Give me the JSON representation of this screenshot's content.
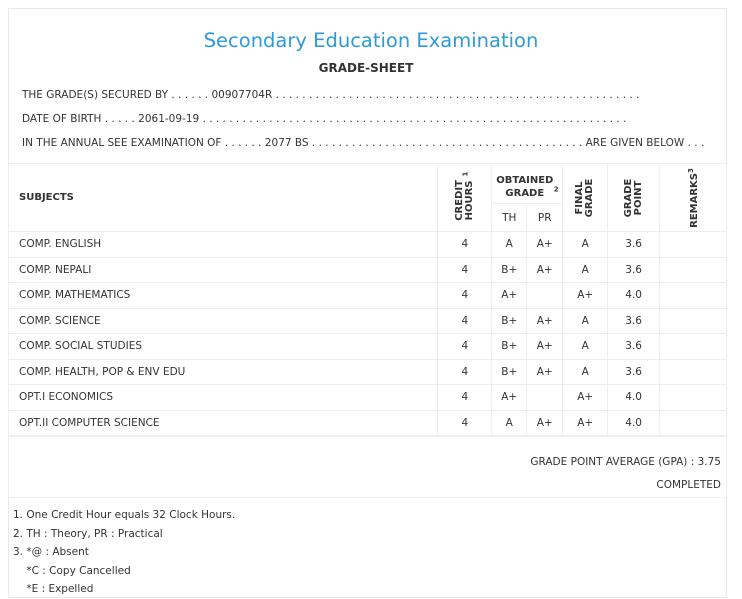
{
  "header": {
    "title": "Secondary Education Examination",
    "subtitle": "GRADE-SHEET"
  },
  "info": {
    "line1_prefix": "THE GRADE(S) SECURED BY . . . . . . ",
    "symbol_no": "00907704R",
    "line1_suffix": " . . . . . . . . . . . . . . . . . . . . . . . . . . . . . . . . . . . . . . . . . . . . . . . . . . . . . . .",
    "line2_prefix": "DATE OF BIRTH . . . . . ",
    "dob": "2061-09-19",
    "line2_suffix": " . . . . . . . . . . . . . . . . . . . . . . . . . . . . . . . . . . . . . . . . . . . . . . . . . . . . . . . . . . . . . . . .",
    "line3_prefix": "IN THE ANNUAL SEE EXAMINATION OF . . . . . . ",
    "exam_year": "2077 BS",
    "line3_suffix": " . . . . . . . . . . . . . . . . . . . . . . . . . . . . . . . . . . . . . . . . . ARE GIVEN BELOW . . ."
  },
  "table": {
    "headers": {
      "subjects": "SUBJECTS",
      "credit_hours": "CREDIT HOURS",
      "credit_sup": "1",
      "obtained_grade": "OBTAINED GRADE",
      "obtained_sup": "2",
      "th": "TH",
      "pr": "PR",
      "final_grade": "FINAL GRADE",
      "grade_point": "GRADE POINT",
      "remarks": "REMARKS",
      "remarks_sup": "3"
    },
    "rows": [
      {
        "subject": "COMP. ENGLISH",
        "credit": "4",
        "th": "A",
        "pr": "A+",
        "final": "A",
        "gp": "3.6",
        "remarks": ""
      },
      {
        "subject": "COMP. NEPALI",
        "credit": "4",
        "th": "B+",
        "pr": "A+",
        "final": "A",
        "gp": "3.6",
        "remarks": ""
      },
      {
        "subject": "COMP. MATHEMATICS",
        "credit": "4",
        "th": "A+",
        "pr": "",
        "final": "A+",
        "gp": "4.0",
        "remarks": ""
      },
      {
        "subject": "COMP. SCIENCE",
        "credit": "4",
        "th": "B+",
        "pr": "A+",
        "final": "A",
        "gp": "3.6",
        "remarks": ""
      },
      {
        "subject": "COMP. SOCIAL STUDIES",
        "credit": "4",
        "th": "B+",
        "pr": "A+",
        "final": "A",
        "gp": "3.6",
        "remarks": ""
      },
      {
        "subject": "COMP. HEALTH, POP & ENV EDU",
        "credit": "4",
        "th": "B+",
        "pr": "A+",
        "final": "A",
        "gp": "3.6",
        "remarks": ""
      },
      {
        "subject": "OPT.I ECONOMICS",
        "credit": "4",
        "th": "A+",
        "pr": "",
        "final": "A+",
        "gp": "4.0",
        "remarks": ""
      },
      {
        "subject": "OPT.II COMPUTER SCIENCE",
        "credit": "4",
        "th": "A",
        "pr": "A+",
        "final": "A+",
        "gp": "4.0",
        "remarks": ""
      }
    ]
  },
  "summary": {
    "gpa_label": "GRADE POINT AVERAGE (GPA) : ",
    "gpa_value": "3.75",
    "status": "COMPLETED"
  },
  "notes": [
    "1. One Credit Hour equals 32 Clock Hours.",
    "2. TH : Theory, PR : Practical",
    "3. *@ : Absent",
    "    *C : Copy Cancelled",
    "    *E : Expelled"
  ]
}
